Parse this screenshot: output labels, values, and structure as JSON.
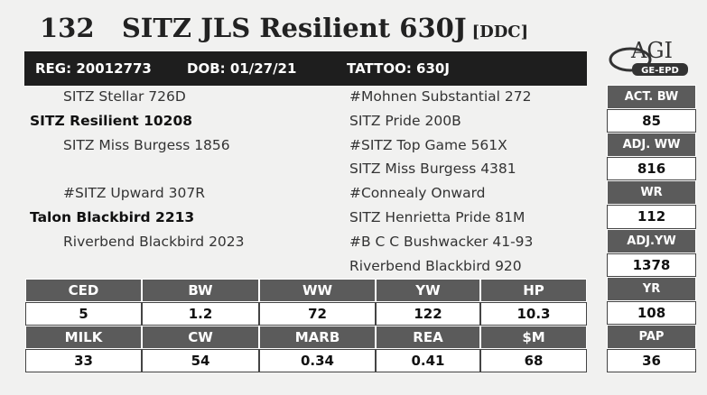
{
  "header": {
    "lot": "132",
    "name": "SITZ JLS Resilient 630J",
    "tag": "[DDC]"
  },
  "info_bar": [
    "REG: 20012773",
    "DOB: 01/27/21",
    "TATTOO: 630J"
  ],
  "logo": {
    "brand": "AGI",
    "sub": "GE-EPD"
  },
  "pedigree": {
    "left": [
      {
        "text": "SITZ Stellar 726D",
        "bold": false
      },
      {
        "text": "SITZ Resilient 10208",
        "bold": true
      },
      {
        "text": "SITZ Miss Burgess 1856",
        "bold": false
      },
      {
        "text": "#SITZ Upward 307R",
        "bold": false
      },
      {
        "text": "Talon Blackbird 2213",
        "bold": true
      },
      {
        "text": "Riverbend Blackbird 2023",
        "bold": false
      }
    ],
    "right": [
      "#Mohnen Substantial 272",
      "SITZ Pride 200B",
      "#SITZ Top Game 561X",
      "SITZ Miss Burgess 4381",
      "#Connealy Onward",
      "SITZ Henrietta Pride 81M",
      "#B C C Bushwacker 41-93",
      "Riverbend Blackbird 920"
    ]
  },
  "stats": [
    {
      "label": "ACT. BW",
      "value": "85"
    },
    {
      "label": "ADJ. WW",
      "value": "816"
    },
    {
      "label": "WR",
      "value": "112"
    },
    {
      "label": "ADJ.YW",
      "value": "1378"
    },
    {
      "label": "YR",
      "value": "108"
    },
    {
      "label": "PAP",
      "value": "36"
    }
  ],
  "epd_table": {
    "rows": [
      [
        "CED",
        "BW",
        "WW",
        "YW",
        "HP"
      ],
      [
        "5",
        "1.2",
        "72",
        "122",
        "10.3"
      ],
      [
        "MILK",
        "CW",
        "MARB",
        "REA",
        "$M"
      ],
      [
        "33",
        "54",
        "0.34",
        "0.41",
        "68"
      ]
    ]
  }
}
